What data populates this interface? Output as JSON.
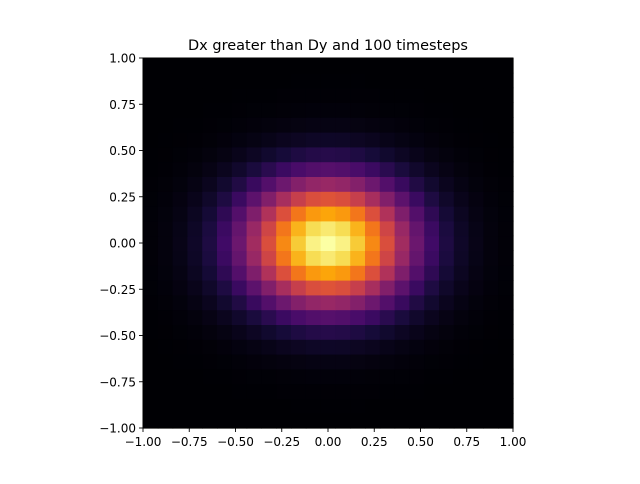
{
  "chart_data": {
    "type": "heatmap",
    "title": "Dx greater than Dy and 100 timesteps",
    "xlabel": "",
    "ylabel": "",
    "xlim": [
      -1.0,
      1.0
    ],
    "ylim": [
      -1.0,
      1.0
    ],
    "grid": false,
    "legend": "none",
    "colormap": "inferno",
    "vmin": 0,
    "vmax": 1,
    "xticks": [
      -1.0,
      -0.75,
      -0.5,
      -0.25,
      0.0,
      0.25,
      0.5,
      0.75,
      1.0
    ],
    "yticks": [
      -1.0,
      -0.75,
      -0.5,
      -0.25,
      0.0,
      0.25,
      0.5,
      0.75,
      1.0
    ],
    "xtick_labels": [
      "−1.00",
      "−0.75",
      "−0.50",
      "−0.25",
      "0.00",
      "0.25",
      "0.50",
      "0.75",
      "1.00"
    ],
    "ytick_labels": [
      "−1.00",
      "−0.75",
      "−0.50",
      "−0.25",
      "0.00",
      "0.25",
      "0.50",
      "0.75",
      "1.00"
    ],
    "grid_size": [
      25,
      25
    ],
    "center": [
      0.0,
      0.0
    ],
    "sigma_x": 0.31,
    "sigma_y": 0.24,
    "peak": 1.0
  },
  "colors": {
    "background": "#ffffff",
    "axis": "#000000",
    "text": "#000000"
  }
}
